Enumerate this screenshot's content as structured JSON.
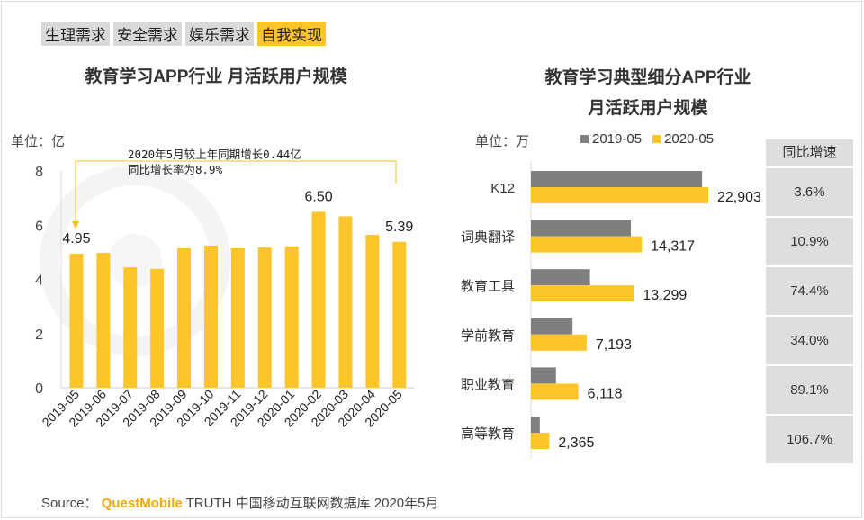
{
  "tabs": [
    {
      "label": "生理需求",
      "active": false
    },
    {
      "label": "安全需求",
      "active": false
    },
    {
      "label": "娱乐需求",
      "active": false
    },
    {
      "label": "自我实现",
      "active": true
    }
  ],
  "watermark": "QUESTMOBILE",
  "colors": {
    "accent": "#fdc52a",
    "grey": "#7f7f7f"
  },
  "chart_data": [
    {
      "type": "bar",
      "title": "教育学习APP行业 月活跃用户规模",
      "unit": "单位：亿",
      "categories": [
        "2019-05",
        "2019-06",
        "2019-07",
        "2019-08",
        "2019-09",
        "2019-10",
        "2019-11",
        "2019-12",
        "2020-01",
        "2020-02",
        "2020-03",
        "2020-04",
        "2020-05"
      ],
      "values": [
        4.95,
        4.98,
        4.45,
        4.39,
        5.15,
        5.25,
        5.15,
        5.18,
        5.22,
        6.5,
        6.33,
        5.65,
        5.39
      ],
      "data_labels": {
        "0": "4.95",
        "9": "6.50",
        "12": "5.39"
      },
      "yticks": [
        "0",
        "2",
        "4",
        "6",
        "8"
      ],
      "ylim": [
        0,
        8
      ],
      "annotation": [
        "2020年5月较上年同期增长0.44亿",
        "同比增长率为8.9%"
      ]
    },
    {
      "type": "bar",
      "orientation": "horizontal",
      "title": [
        "教育学习典型细分APP行业",
        "月活跃用户规模"
      ],
      "unit": "单位：万",
      "categories": [
        "K12",
        "词典翻译",
        "教育工具",
        "学前教育",
        "职业教育",
        "高等教育"
      ],
      "series": [
        {
          "name": "2019-05",
          "values": [
            22107,
            12910,
            7626,
            5368,
            3235,
            1144
          ]
        },
        {
          "name": "2020-05",
          "values": [
            22903,
            14317,
            13299,
            7193,
            6118,
            2365
          ]
        }
      ],
      "data_labels": [
        "22,903",
        "14,317",
        "13,299",
        "7,193",
        "6,118",
        "2,365"
      ],
      "table": {
        "header": "同比增速",
        "values": [
          "3.6%",
          "10.9%",
          "74.4%",
          "34.0%",
          "89.1%",
          "106.7%"
        ]
      }
    }
  ],
  "source": {
    "prefix": "Source：",
    "brand": "QuestMobile",
    "text": "TRUTH 中国移动互联网数据库 2020年5月"
  }
}
